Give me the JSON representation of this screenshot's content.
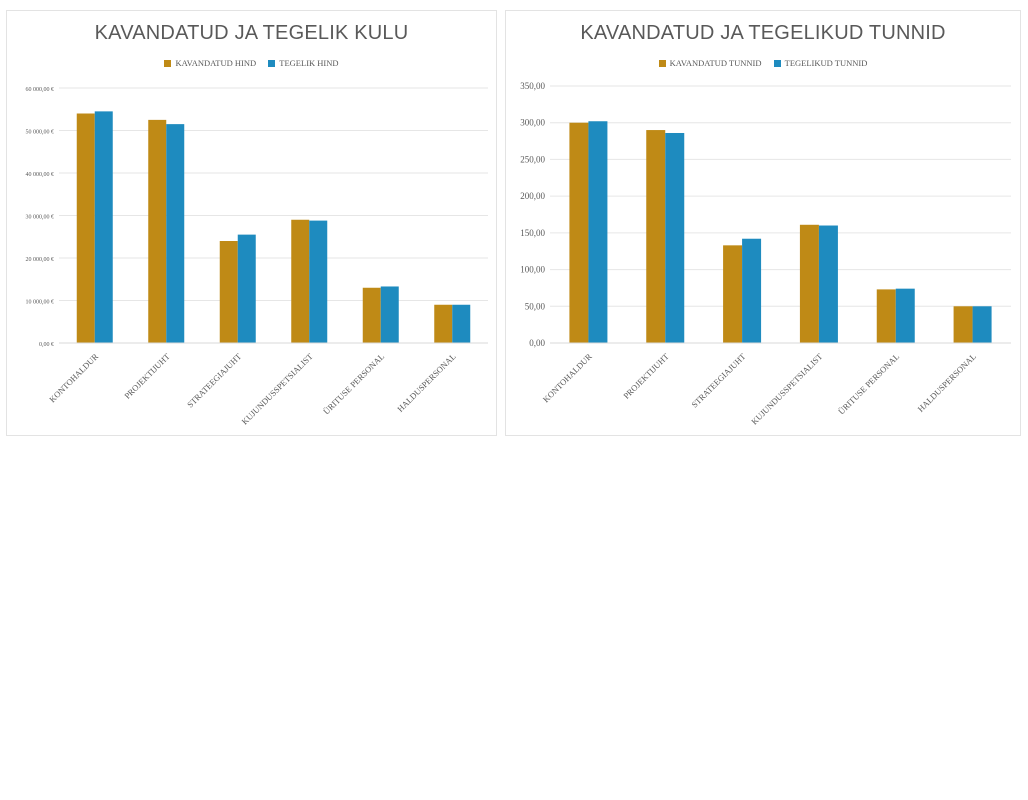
{
  "colors": {
    "planned": "#BF8A16",
    "actual": "#1E8BBF",
    "grid": "#e6e6e6",
    "text": "#595959"
  },
  "chart_data": [
    {
      "type": "bar",
      "title": "KAVANDATUD JA TEGELIK KULU",
      "categories": [
        "KONTOHALDUR",
        "PROJEKTIJUHT",
        "STRATEEGIAJUHT",
        "KUJUNDUSSPETSIALIST",
        "ÜRITUSE PERSONAL",
        "HALDUSPERSONAL"
      ],
      "series": [
        {
          "name": "KAVANDATUD HIND",
          "values": [
            54000,
            52500,
            24000,
            29000,
            13000,
            9000
          ]
        },
        {
          "name": "TEGELIK HIND",
          "values": [
            54500,
            51500,
            25500,
            28800,
            13300,
            9000
          ]
        }
      ],
      "yticks": [
        0,
        10000,
        20000,
        30000,
        40000,
        50000,
        60000
      ],
      "ytick_labels": [
        "0,00 €",
        "10 000,00 €",
        "20 000,00 €",
        "30 000,00 €",
        "40 000,00 €",
        "50 000,00 €",
        "60 000,00 €"
      ],
      "ylim": [
        0,
        60000
      ],
      "grid": true,
      "legend": "top"
    },
    {
      "type": "bar",
      "title": "KAVANDATUD JA TEGELIKUD TUNNID",
      "categories": [
        "KONTOHALDUR",
        "PROJEKTIJUHT",
        "STRATEEGIAJUHT",
        "KUJUNDUSSPETSIALIST",
        "ÜRITUSE PERSONAL",
        "HALDUSPERSONAL"
      ],
      "series": [
        {
          "name": "KAVANDATUD TUNNID",
          "values": [
            300,
            290,
            133,
            161,
            73,
            50
          ]
        },
        {
          "name": "TEGELIKUD TUNNID",
          "values": [
            302,
            286,
            142,
            160,
            74,
            50
          ]
        }
      ],
      "yticks": [
        0,
        50,
        100,
        150,
        200,
        250,
        300,
        350
      ],
      "ytick_labels": [
        "0,00",
        "50,00",
        "100,00",
        "150,00",
        "200,00",
        "250,00",
        "300,00",
        "350,00"
      ],
      "ylim": [
        0,
        350
      ],
      "grid": true,
      "legend": "top"
    }
  ]
}
